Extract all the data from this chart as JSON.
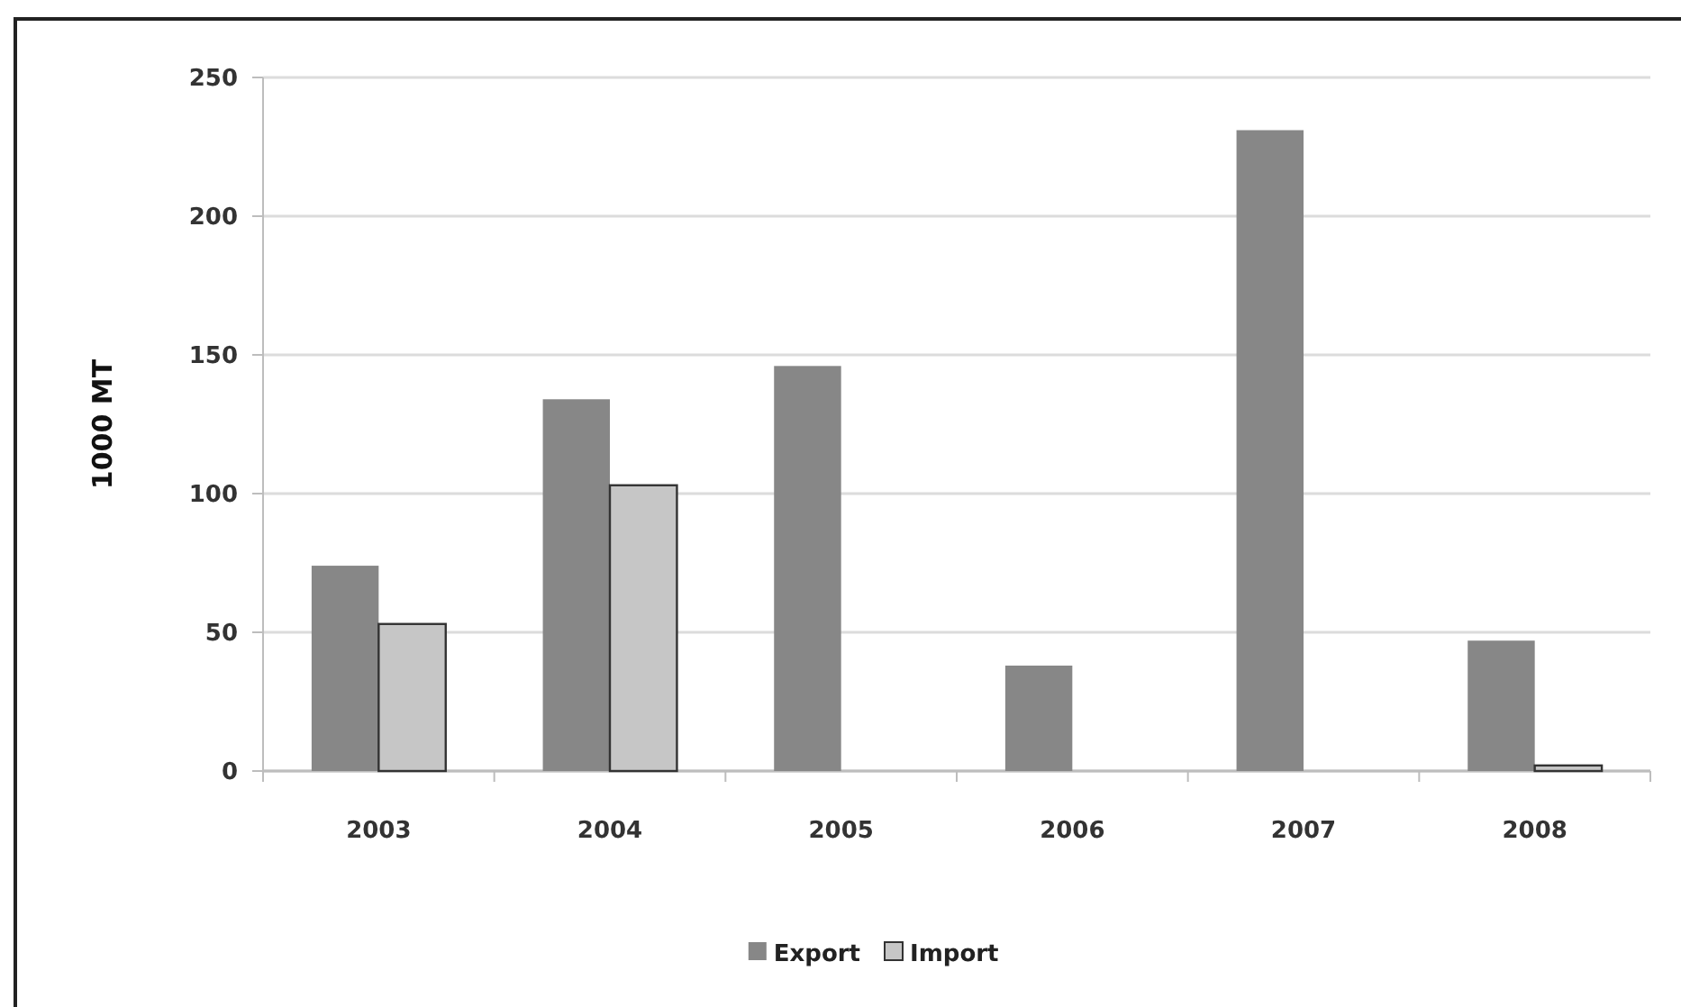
{
  "chart_data": {
    "type": "bar",
    "ylabel": "1000 MT",
    "categories": [
      "2003",
      "2004",
      "2005",
      "2006",
      "2007",
      "2008"
    ],
    "series": [
      {
        "name": "Export",
        "color": "#878787",
        "values": [
          74,
          134,
          146,
          38,
          231,
          47
        ]
      },
      {
        "name": "Import",
        "color": "#c6c6c6",
        "values": [
          53,
          103,
          null,
          null,
          null,
          2
        ]
      }
    ],
    "ylim": [
      0,
      250
    ],
    "yticks": [
      0,
      50,
      100,
      150,
      200,
      250
    ],
    "grid": "y",
    "legend": "bottom"
  }
}
